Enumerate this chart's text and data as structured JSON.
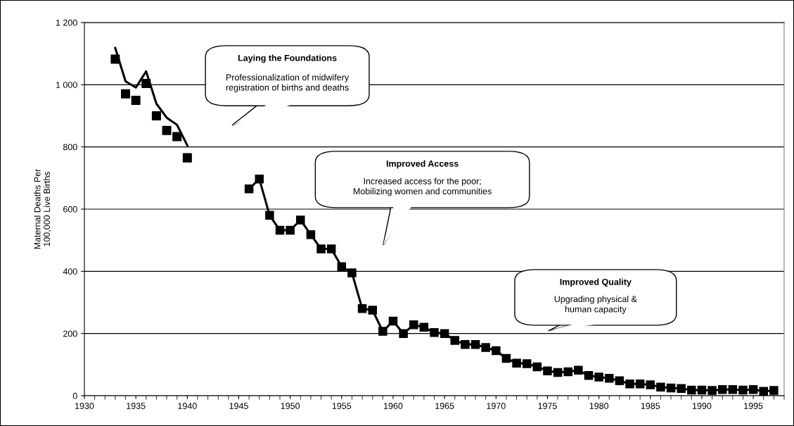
{
  "chart_data": {
    "type": "line",
    "ylabel": "Maternal Deaths Per\n100,000 Live Births",
    "series": [
      {
        "color": "#000000",
        "marker": "none",
        "x": [
          1933,
          1934,
          1935,
          1936,
          1937,
          1938,
          1939,
          1940
        ],
        "values": [
          1118,
          1011,
          991,
          1043,
          939,
          894,
          871,
          805
        ]
      },
      {
        "type": "scatter",
        "color": "#000000",
        "marker": "square",
        "x": [
          1933,
          1934,
          1935,
          1936,
          1937,
          1938,
          1939,
          1940
        ],
        "values": [
          1082,
          971,
          950,
          1004,
          900,
          853,
          833,
          765
        ]
      },
      {
        "color": "#000000",
        "marker": "square",
        "x": [
          1946,
          1947,
          1948,
          1949,
          1950,
          1951,
          1952,
          1953,
          1954,
          1955,
          1956,
          1957,
          1958,
          1959,
          1960,
          1961,
          1962,
          1963,
          1964,
          1965,
          1966,
          1967,
          1968,
          1969,
          1970,
          1971,
          1972,
          1973,
          1974,
          1975,
          1976,
          1977,
          1978,
          1979,
          1980,
          1981,
          1982,
          1983,
          1984,
          1985,
          1986,
          1987,
          1988,
          1989,
          1990,
          1991,
          1992,
          1993,
          1994,
          1995,
          1996,
          1997
        ],
        "values": [
          665,
          697,
          580,
          532,
          532,
          565,
          518,
          472,
          472,
          415,
          395,
          280,
          275,
          207,
          240,
          200,
          228,
          220,
          203,
          200,
          178,
          165,
          165,
          155,
          145,
          120,
          105,
          103,
          93,
          80,
          75,
          77,
          82,
          65,
          60,
          56,
          48,
          38,
          38,
          35,
          28,
          25,
          23,
          18,
          18,
          17,
          20,
          20,
          18,
          20,
          14,
          17
        ]
      }
    ],
    "xlim": [
      1930,
      1998
    ],
    "xticks": [
      1930,
      1935,
      1940,
      1945,
      1950,
      1955,
      1960,
      1965,
      1970,
      1975,
      1980,
      1985,
      1990,
      1995
    ],
    "ylim": [
      0,
      1200
    ],
    "yticks": [
      0,
      200,
      400,
      600,
      800,
      {
        "value": 1000,
        "label": "1 000"
      },
      {
        "value": 1200,
        "label": "1 200"
      }
    ],
    "grid": "y",
    "annotations": [
      "Laying the Foundations",
      "Professionalization of midwifery\nregistration of births and deaths",
      "Improved Access",
      "Increased access for the poor;\nMobilizing women and communities",
      "Improved Quality",
      "Upgrading physical &\nhuman capacity"
    ]
  }
}
